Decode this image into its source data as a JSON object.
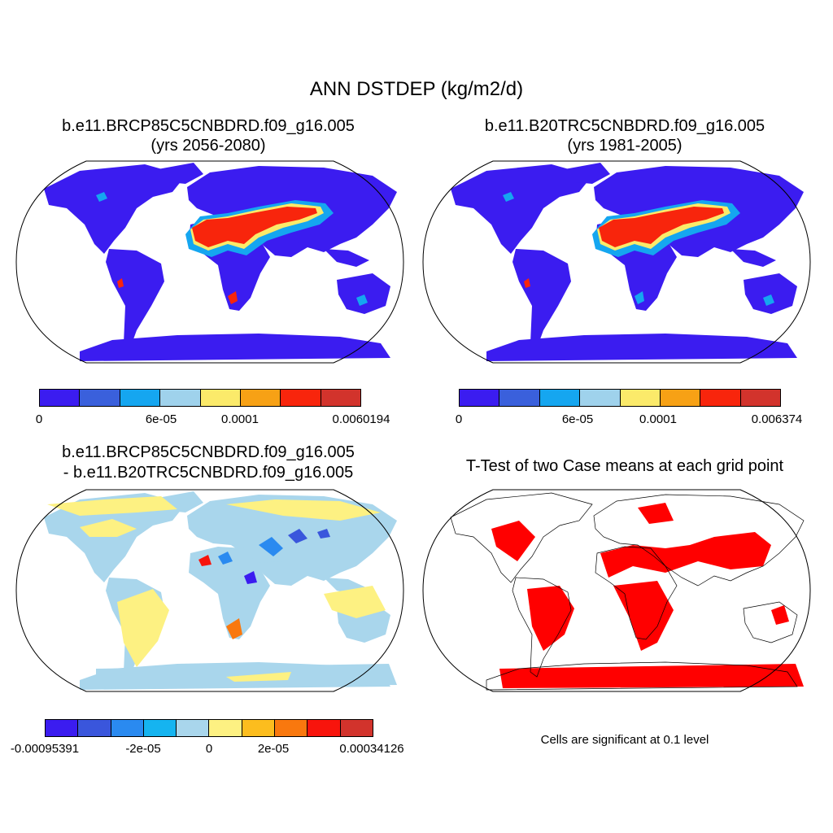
{
  "figure": {
    "title": "ANN DSTDEP (kg/m2/d)",
    "note": "Cells are significant at 0.1 level"
  },
  "panels": [
    {
      "title_line1": "b.e11.BRCP85C5CNBDRD.f09_g16.005",
      "title_line2": "(yrs 2056-2080)",
      "colorbar": {
        "colors": [
          "#3b1cf0",
          "#3a60dc",
          "#15a6f0",
          "#9fd2ec",
          "#fbea6a",
          "#f7a115",
          "#f8250c",
          "#d2332c"
        ],
        "labels": [
          "0",
          "6e-05",
          "0.0001",
          "0.0060194"
        ]
      }
    },
    {
      "title_line1": "b.e11.B20TRC5CNBDRD.f09_g16.005",
      "title_line2": "(yrs 1981-2005)",
      "colorbar": {
        "colors": [
          "#3b1cf0",
          "#3a60dc",
          "#15a6f0",
          "#9fd2ec",
          "#fbea6a",
          "#f7a115",
          "#f8250c",
          "#d2332c"
        ],
        "labels": [
          "0",
          "6e-05",
          "0.0001",
          "0.006374"
        ]
      }
    },
    {
      "title_line1": "b.e11.BRCP85C5CNBDRD.f09_g16.005",
      "title_line2": "- b.e11.B20TRC5CNBDRD.f09_g16.005",
      "colorbar": {
        "colors": [
          "#3b1cf0",
          "#3a56dc",
          "#2a8af0",
          "#15b4f0",
          "#a9d6ec",
          "#fdf182",
          "#fcbd1e",
          "#f9780e",
          "#f8140c",
          "#d2332c"
        ],
        "labels": [
          "-0.00095391",
          "-2e-05",
          "0",
          "2e-05",
          "0.00034126"
        ]
      }
    },
    {
      "title_line1": "T-Test of two Case means at each grid point",
      "significant_color": "#ff0000"
    }
  ]
}
